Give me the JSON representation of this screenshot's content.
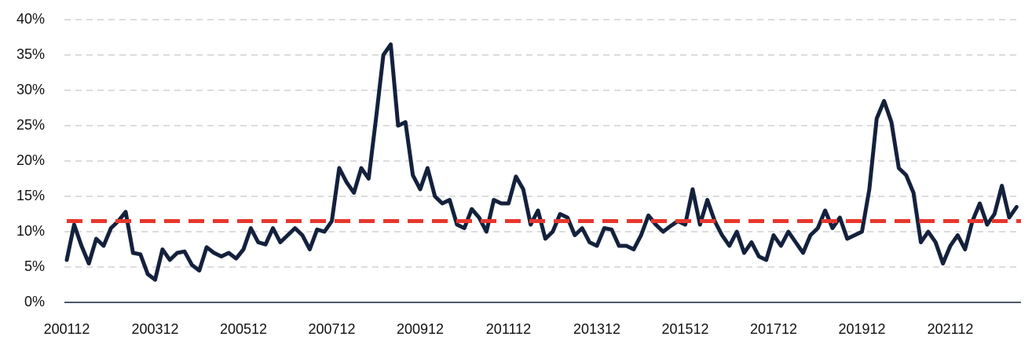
{
  "chart_data": {
    "type": "line",
    "categories": [
      "200112",
      null,
      null,
      null,
      null,
      null,
      null,
      null,
      null,
      null,
      null,
      null,
      "200312",
      null,
      null,
      null,
      null,
      null,
      null,
      null,
      null,
      null,
      null,
      null,
      "200512",
      null,
      null,
      null,
      null,
      null,
      null,
      null,
      null,
      null,
      null,
      null,
      "200712",
      null,
      null,
      null,
      null,
      null,
      null,
      null,
      null,
      null,
      null,
      null,
      "200912",
      null,
      null,
      null,
      null,
      null,
      null,
      null,
      null,
      null,
      null,
      null,
      "201112",
      null,
      null,
      null,
      null,
      null,
      null,
      null,
      null,
      null,
      null,
      null,
      "201312",
      null,
      null,
      null,
      null,
      null,
      null,
      null,
      null,
      null,
      null,
      null,
      "201512",
      null,
      null,
      null,
      null,
      null,
      null,
      null,
      null,
      null,
      null,
      null,
      "201712",
      null,
      null,
      null,
      null,
      null,
      null,
      null,
      null,
      null,
      null,
      null,
      "201912",
      null,
      null,
      null,
      null,
      null,
      null,
      null,
      null,
      null,
      null,
      null,
      "202112",
      null,
      null,
      null,
      null,
      null,
      null,
      null,
      null,
      null
    ],
    "values": [
      6,
      11,
      8,
      5.5,
      9,
      8,
      10.5,
      11.5,
      12.8,
      7,
      6.8,
      4,
      3.2,
      7.5,
      6,
      7,
      7.2,
      5.3,
      4.5,
      7.8,
      7,
      6.5,
      7,
      6.2,
      7.5,
      10.5,
      8.5,
      8.2,
      10.5,
      8.5,
      9.5,
      10.5,
      9.5,
      7.5,
      10.3,
      10,
      11.5,
      19,
      17,
      15.5,
      19,
      17.5,
      26,
      35,
      36.5,
      25,
      25.5,
      18,
      16,
      19,
      15,
      14,
      14.5,
      11,
      10.5,
      13.2,
      12,
      10,
      14.5,
      14,
      14,
      17.8,
      16,
      11,
      13,
      9,
      10,
      12.5,
      12,
      9.5,
      10.5,
      8.5,
      8,
      10.5,
      10.3,
      8,
      8,
      7.5,
      9.5,
      12.3,
      11,
      10,
      10.8,
      11.5,
      11,
      16,
      11,
      14.5,
      11.5,
      9.5,
      8,
      10,
      7,
      8.5,
      6.5,
      6,
      9.5,
      8,
      10,
      8.5,
      7,
      9.5,
      10.5,
      13,
      10.5,
      12,
      9,
      9.5,
      10,
      16,
      26,
      28.5,
      25.5,
      19,
      18,
      15.5,
      8.5,
      10,
      8.5,
      5.5,
      8,
      9.5,
      7.5,
      11.5,
      14,
      11,
      12.5,
      16.5,
      12,
      13.5
    ],
    "color": "#14213d",
    "reference_line": {
      "value": 11.5,
      "color": "#e8372c"
    },
    "ylim": [
      0,
      40
    ],
    "yticks": [
      {
        "value": 0,
        "label": "0%"
      },
      {
        "value": 5,
        "label": "5%"
      },
      {
        "value": 10,
        "label": "10%"
      },
      {
        "value": 15,
        "label": "15%"
      },
      {
        "value": 20,
        "label": "20%"
      },
      {
        "value": 25,
        "label": "25%"
      },
      {
        "value": 30,
        "label": "30%"
      },
      {
        "value": 35,
        "label": "35%"
      },
      {
        "value": 40,
        "label": "40%"
      }
    ],
    "grid": true
  }
}
